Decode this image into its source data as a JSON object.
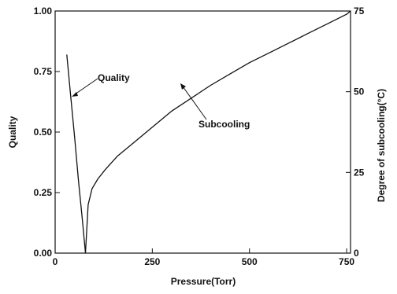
{
  "chart_data": {
    "type": "line",
    "title": "",
    "xlabel": "Pressure(Torr)",
    "ylabel": "Quality",
    "y2label": "Degree of subcooling(°C)",
    "xlim": [
      0,
      760
    ],
    "ylim": [
      0,
      1.0
    ],
    "y2lim": [
      0,
      75
    ],
    "x_ticks": [
      0,
      250,
      500,
      750
    ],
    "y_ticks": [
      "0.00",
      "0.25",
      "0.50",
      "0.75",
      "1.00"
    ],
    "y2_ticks": [
      "0",
      "25",
      "50",
      "75"
    ],
    "grid": false,
    "series": [
      {
        "name": "Quality",
        "axis": "left",
        "x": [
          30,
          40,
          50,
          60,
          70,
          78
        ],
        "y": [
          0.82,
          0.65,
          0.48,
          0.3,
          0.14,
          0.0
        ]
      },
      {
        "name": "Subcooling",
        "axis": "right",
        "x": [
          78,
          85,
          95,
          110,
          130,
          160,
          200,
          250,
          300,
          350,
          400,
          450,
          500,
          550,
          600,
          650,
          700,
          750,
          760
        ],
        "y": [
          0,
          15,
          20,
          23,
          26,
          30,
          34,
          39,
          44,
          48,
          52,
          55.5,
          59,
          62,
          65,
          68,
          71,
          74,
          75
        ]
      }
    ],
    "annotations": [
      {
        "text": "Quality",
        "target_series": "Quality"
      },
      {
        "text": "Subcooling",
        "target_series": "Subcooling"
      }
    ]
  }
}
